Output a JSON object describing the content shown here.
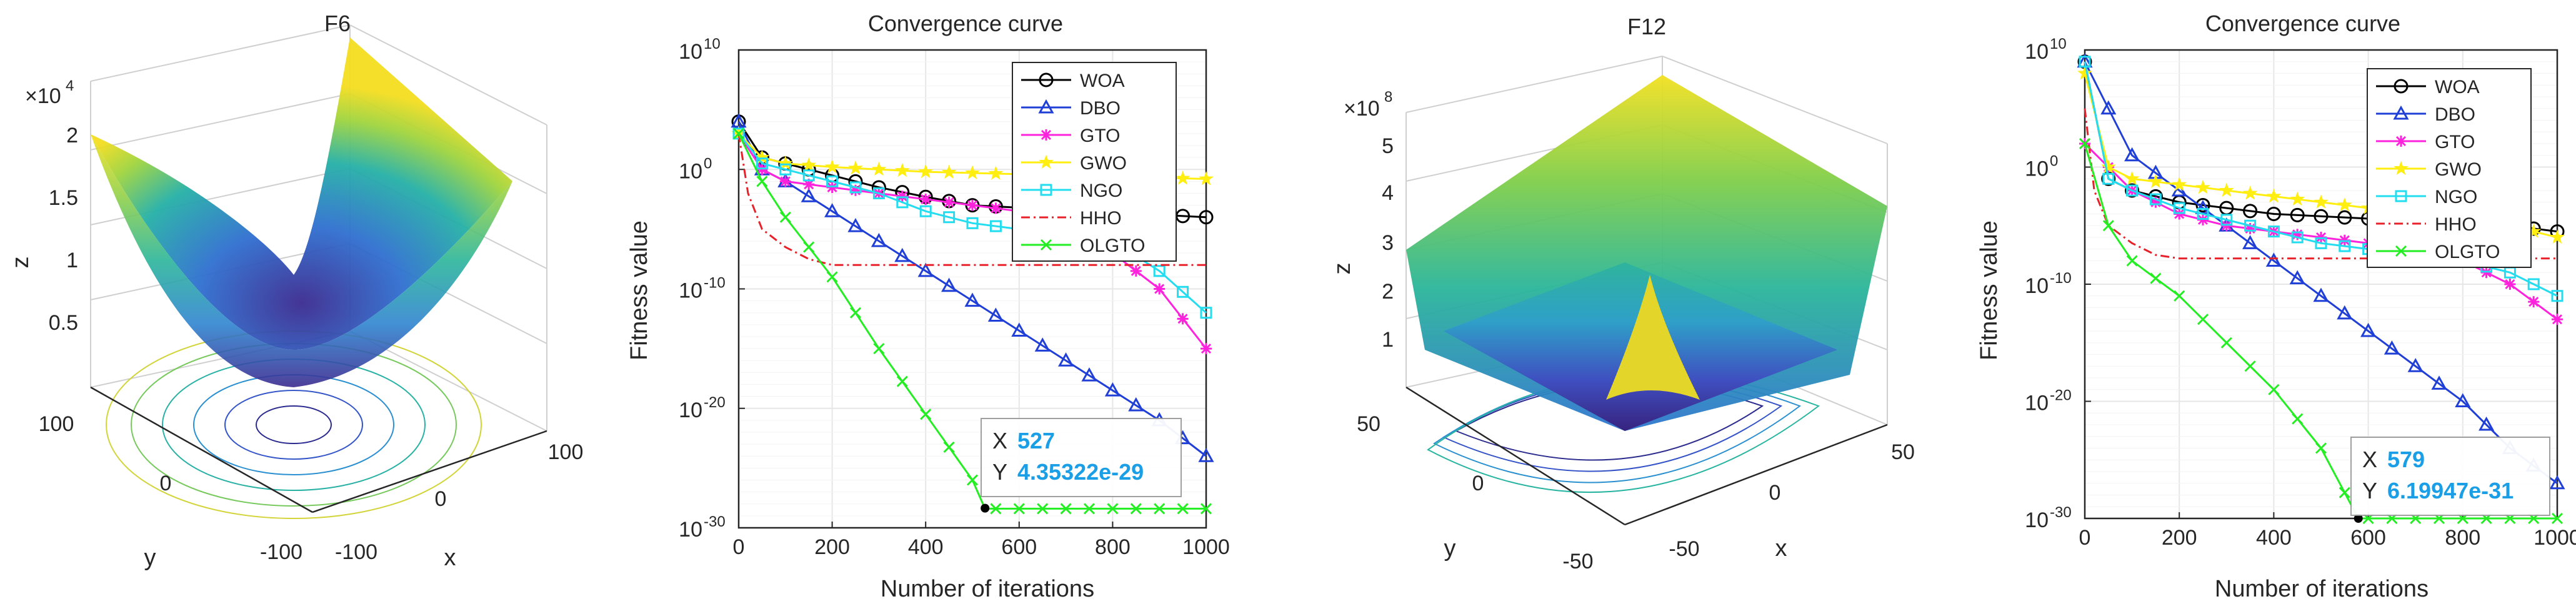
{
  "chart_data": [
    {
      "type": "surface3d",
      "title": "F6",
      "xlabel": "x",
      "ylabel": "y",
      "zlabel": "z",
      "z_multiplier": "×10",
      "z_exponent": "4",
      "z_ticks": [
        "0.5",
        "1",
        "1.5",
        "2"
      ],
      "x_ticks": [
        "-100",
        "0",
        "100"
      ],
      "y_ticks": [
        "-100",
        "0",
        "100"
      ],
      "xlim": [
        -100,
        100
      ],
      "ylim": [
        -100,
        100
      ],
      "zlim": [
        0,
        20000
      ]
    },
    {
      "type": "line",
      "title": "Convergence curve",
      "xlabel": "Number of iterations",
      "ylabel": "Fitness value",
      "xlim": [
        0,
        1000
      ],
      "y_scale": "log",
      "ylim_exp": [
        -30,
        10
      ],
      "x_ticks": [
        "0",
        "200",
        "400",
        "600",
        "800",
        "1000"
      ],
      "y_ticks_base": "10",
      "y_ticks_exp": [
        "-30",
        "-20",
        "-10",
        "0",
        "10"
      ],
      "y_tick_zero": "10",
      "y_tick_zero_exp": "0",
      "legend_position": "top-right",
      "series": [
        {
          "name": "WOA",
          "color": "#000000",
          "marker": "circle",
          "style": "solid",
          "x": [
            0,
            50,
            100,
            200,
            300,
            400,
            500,
            600,
            700,
            800,
            900,
            1000
          ],
          "log10_y": [
            4,
            1,
            0.5,
            -0.5,
            -1.5,
            -2.3,
            -3,
            -3.2,
            -3.4,
            -3.6,
            -3.8,
            -4
          ]
        },
        {
          "name": "DBO",
          "color": "#1f3fd6",
          "marker": "triangle",
          "style": "solid",
          "x": [
            0,
            50,
            100,
            200,
            300,
            400,
            500,
            600,
            700,
            800,
            900,
            1000
          ],
          "log10_y": [
            4,
            0,
            -1,
            -3.5,
            -6,
            -8.5,
            -11,
            -13.5,
            -16,
            -18.5,
            -21,
            -24
          ]
        },
        {
          "name": "GTO",
          "color": "#ff22dd",
          "marker": "star",
          "style": "solid",
          "x": [
            0,
            50,
            100,
            200,
            300,
            400,
            500,
            600,
            700,
            800,
            900,
            1000
          ],
          "log10_y": [
            3,
            0,
            -1,
            -1.5,
            -2,
            -2.5,
            -3,
            -3.5,
            -4,
            -7,
            -10,
            -15
          ]
        },
        {
          "name": "GWO",
          "color": "#ffee10",
          "marker": "pentagram",
          "style": "solid",
          "x": [
            0,
            50,
            100,
            200,
            300,
            400,
            500,
            600,
            700,
            800,
            900,
            1000
          ],
          "log10_y": [
            3,
            1,
            0.5,
            0.2,
            0,
            -0.2,
            -0.3,
            -0.4,
            -0.5,
            -0.6,
            -0.7,
            -0.8
          ]
        },
        {
          "name": "NGO",
          "color": "#22dcef",
          "marker": "square",
          "style": "solid",
          "x": [
            0,
            50,
            100,
            200,
            300,
            400,
            500,
            600,
            700,
            800,
            900,
            1000
          ],
          "log10_y": [
            3,
            0.5,
            0,
            -1,
            -2,
            -3.5,
            -4.5,
            -5,
            -5.5,
            -6,
            -8.5,
            -12
          ]
        },
        {
          "name": "HHO",
          "color": "#e8202a",
          "marker": "none",
          "style": "dashdot",
          "x": [
            0,
            20,
            50,
            100,
            150,
            200,
            300,
            400,
            500,
            600,
            700,
            800,
            900,
            1000
          ],
          "log10_y": [
            3,
            -2,
            -5,
            -6.5,
            -7.5,
            -8,
            -8,
            -8,
            -8,
            -8,
            -8,
            -8,
            -8,
            -8
          ]
        },
        {
          "name": "OLGTO",
          "color": "#22ee22",
          "marker": "x",
          "style": "solid",
          "x": [
            0,
            50,
            100,
            200,
            300,
            400,
            500,
            527,
            600,
            700,
            800,
            900,
            1000
          ],
          "log10_y": [
            3,
            -1,
            -4,
            -9,
            -15,
            -20.5,
            -26,
            -28.4,
            -28.4,
            -28.4,
            -28.4,
            -28.4,
            -28.4
          ]
        }
      ],
      "datatip": {
        "x_label": "X",
        "x_value": "527",
        "y_label": "Y",
        "y_value": "4.35322e-29",
        "point_x": 527,
        "point_log10_y": -28.36
      }
    },
    {
      "type": "surface3d",
      "title": "F12",
      "xlabel": "x",
      "ylabel": "y",
      "zlabel": "z",
      "z_multiplier": "×10",
      "z_exponent": "8",
      "z_ticks": [
        "1",
        "2",
        "3",
        "4",
        "5"
      ],
      "x_ticks": [
        "-50",
        "0",
        "50"
      ],
      "y_ticks": [
        "-50",
        "0",
        "50"
      ],
      "xlim": [
        -50,
        50
      ],
      "ylim": [
        -50,
        50
      ],
      "zlim": [
        0,
        500000000
      ]
    },
    {
      "type": "line",
      "title": "Convergence curve",
      "xlabel": "Number of iterations",
      "ylabel": "Fitness value",
      "xlim": [
        0,
        1000
      ],
      "y_scale": "log",
      "ylim_exp": [
        -30,
        10
      ],
      "x_ticks": [
        "0",
        "200",
        "400",
        "600",
        "800",
        "1000"
      ],
      "y_ticks_base": "10",
      "y_ticks_exp": [
        "-30",
        "-20",
        "-10",
        "0",
        "10"
      ],
      "y_tick_zero": "10",
      "y_tick_zero_exp": "0",
      "legend_position": "top-right",
      "series": [
        {
          "name": "WOA",
          "color": "#000000",
          "marker": "circle",
          "style": "solid",
          "x": [
            0,
            50,
            100,
            200,
            300,
            400,
            500,
            600,
            700,
            800,
            900,
            1000
          ],
          "log10_y": [
            9,
            -1,
            -2,
            -3,
            -3.5,
            -4,
            -4.2,
            -4.4,
            -4.6,
            -4.8,
            -5,
            -5.5
          ]
        },
        {
          "name": "DBO",
          "color": "#1f3fd6",
          "marker": "triangle",
          "style": "solid",
          "x": [
            0,
            50,
            100,
            200,
            300,
            400,
            500,
            600,
            700,
            800,
            900,
            1000
          ],
          "log10_y": [
            9,
            5,
            1,
            -2,
            -5,
            -8,
            -11,
            -14,
            -17,
            -20,
            -24,
            -27
          ]
        },
        {
          "name": "GTO",
          "color": "#ff22dd",
          "marker": "star",
          "style": "solid",
          "x": [
            0,
            50,
            100,
            200,
            300,
            400,
            500,
            600,
            700,
            800,
            900,
            1000
          ],
          "log10_y": [
            2,
            0,
            -2,
            -4,
            -5,
            -5.5,
            -6,
            -6.5,
            -7,
            -8,
            -10,
            -13
          ]
        },
        {
          "name": "GWO",
          "color": "#ffee10",
          "marker": "pentagram",
          "style": "solid",
          "x": [
            0,
            50,
            100,
            200,
            300,
            400,
            500,
            600,
            700,
            800,
            900,
            1000
          ],
          "log10_y": [
            8,
            0,
            -1,
            -1.5,
            -2,
            -2.5,
            -3,
            -3.5,
            -4,
            -4.5,
            -5,
            -6
          ]
        },
        {
          "name": "NGO",
          "color": "#22dcef",
          "marker": "square",
          "style": "solid",
          "x": [
            0,
            50,
            100,
            200,
            300,
            400,
            500,
            600,
            700,
            800,
            900,
            1000
          ],
          "log10_y": [
            9,
            -1,
            -2,
            -3.5,
            -4.5,
            -5.5,
            -6.5,
            -7,
            -7.5,
            -8,
            -9,
            -11
          ]
        },
        {
          "name": "HHO",
          "color": "#e8202a",
          "marker": "none",
          "style": "dashdot",
          "x": [
            0,
            20,
            50,
            100,
            150,
            200,
            300,
            400,
            500,
            600,
            700,
            800,
            900,
            1000
          ],
          "log10_y": [
            5,
            -2,
            -5,
            -6.5,
            -7.5,
            -7.8,
            -7.8,
            -7.8,
            -7.8,
            -7.8,
            -7.8,
            -7.8,
            -7.8,
            -7.8
          ]
        },
        {
          "name": "OLGTO",
          "color": "#22ee22",
          "marker": "x",
          "style": "solid",
          "x": [
            0,
            50,
            100,
            200,
            300,
            400,
            500,
            579,
            600,
            700,
            800,
            900,
            1000
          ],
          "log10_y": [
            2,
            -5,
            -8,
            -11,
            -15,
            -19,
            -24,
            -30,
            -30,
            -30,
            -30,
            -30,
            -30
          ]
        }
      ],
      "datatip": {
        "x_label": "X",
        "x_value": "579",
        "y_label": "Y",
        "y_value": "6.19947e-31",
        "point_x": 579,
        "point_log10_y": -30
      }
    }
  ]
}
